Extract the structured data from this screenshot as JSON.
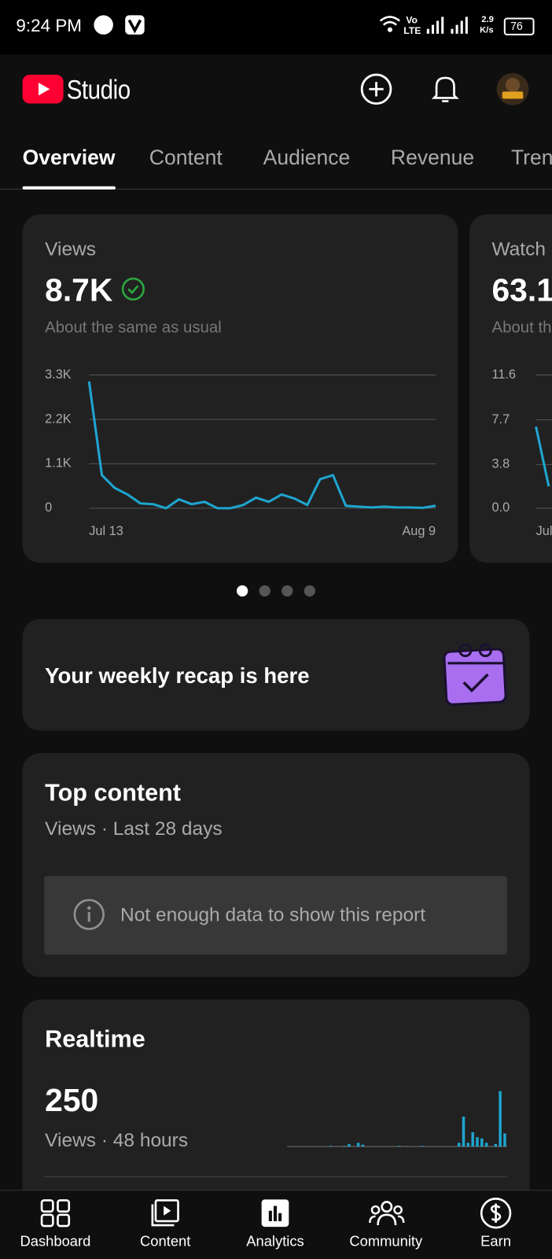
{
  "status_bar": {
    "time": "9:24 PM",
    "volte": [
      "Vo",
      "LTE"
    ],
    "speed": [
      "2.9",
      "K/s"
    ],
    "battery": "76"
  },
  "header": {
    "title": "Studio"
  },
  "tabs": [
    "Overview",
    "Content",
    "Audience",
    "Revenue",
    "Tren"
  ],
  "metric_cards": [
    {
      "label": "Views",
      "value": "8.7K",
      "note": "About the same as usual",
      "chart": {
        "type": "line",
        "color": "#1ea5cf",
        "grid": true,
        "categories": [
          "Jul 13",
          null,
          null,
          null,
          null,
          null,
          null,
          null,
          null,
          null,
          null,
          null,
          null,
          null,
          null,
          null,
          null,
          null,
          null,
          null,
          null,
          null,
          null,
          null,
          null,
          null,
          null,
          "Aug 9"
        ],
        "values": [
          3140,
          820,
          500,
          340,
          120,
          100,
          0,
          220,
          100,
          160,
          0,
          0,
          80,
          260,
          160,
          340,
          240,
          80,
          720,
          820,
          60,
          40,
          20,
          40,
          20,
          20,
          10,
          60
        ],
        "ylim": [
          0,
          3300
        ],
        "yticks": [
          {
            "value": 3300,
            "label": "3.3K"
          },
          {
            "value": 2200,
            "label": "2.2K"
          },
          {
            "value": 1100,
            "label": "1.1K"
          },
          0
        ]
      }
    },
    {
      "label": "Watch",
      "value": "63.1",
      "note": "About th",
      "chart": {
        "type": "line",
        "color": "#1ea5cf",
        "grid": true,
        "categories": [
          "Jul",
          null
        ],
        "values": [
          7.1,
          1.9
        ],
        "ylim": [
          0,
          11.6
        ],
        "yticks": [
          11.6,
          7.7,
          3.8,
          {
            "value": 0,
            "label": "0.0"
          }
        ]
      }
    }
  ],
  "recap": {
    "text": "Your weekly recap is here"
  },
  "top_content": {
    "title": "Top content",
    "subtitle": "Views · Last 28 days",
    "message": "Not enough data to show this report"
  },
  "realtime": {
    "title": "Realtime",
    "value": "250",
    "subtitle": "Views · 48 hours",
    "chart": {
      "type": "bar",
      "color": "#1ea5cf",
      "values": [
        0,
        0,
        0,
        0,
        0,
        0,
        0,
        0,
        0,
        1,
        0,
        0,
        1,
        4,
        0,
        6,
        3,
        0,
        0,
        0,
        0,
        0,
        0,
        0,
        1,
        0,
        0,
        0,
        0,
        1,
        0,
        0,
        0,
        0,
        0,
        0,
        0,
        6,
        48,
        6,
        23,
        15,
        13,
        6,
        0,
        4,
        89,
        21
      ]
    }
  },
  "bottom_nav": [
    "Dashboard",
    "Content",
    "Analytics",
    "Community",
    "Earn"
  ]
}
